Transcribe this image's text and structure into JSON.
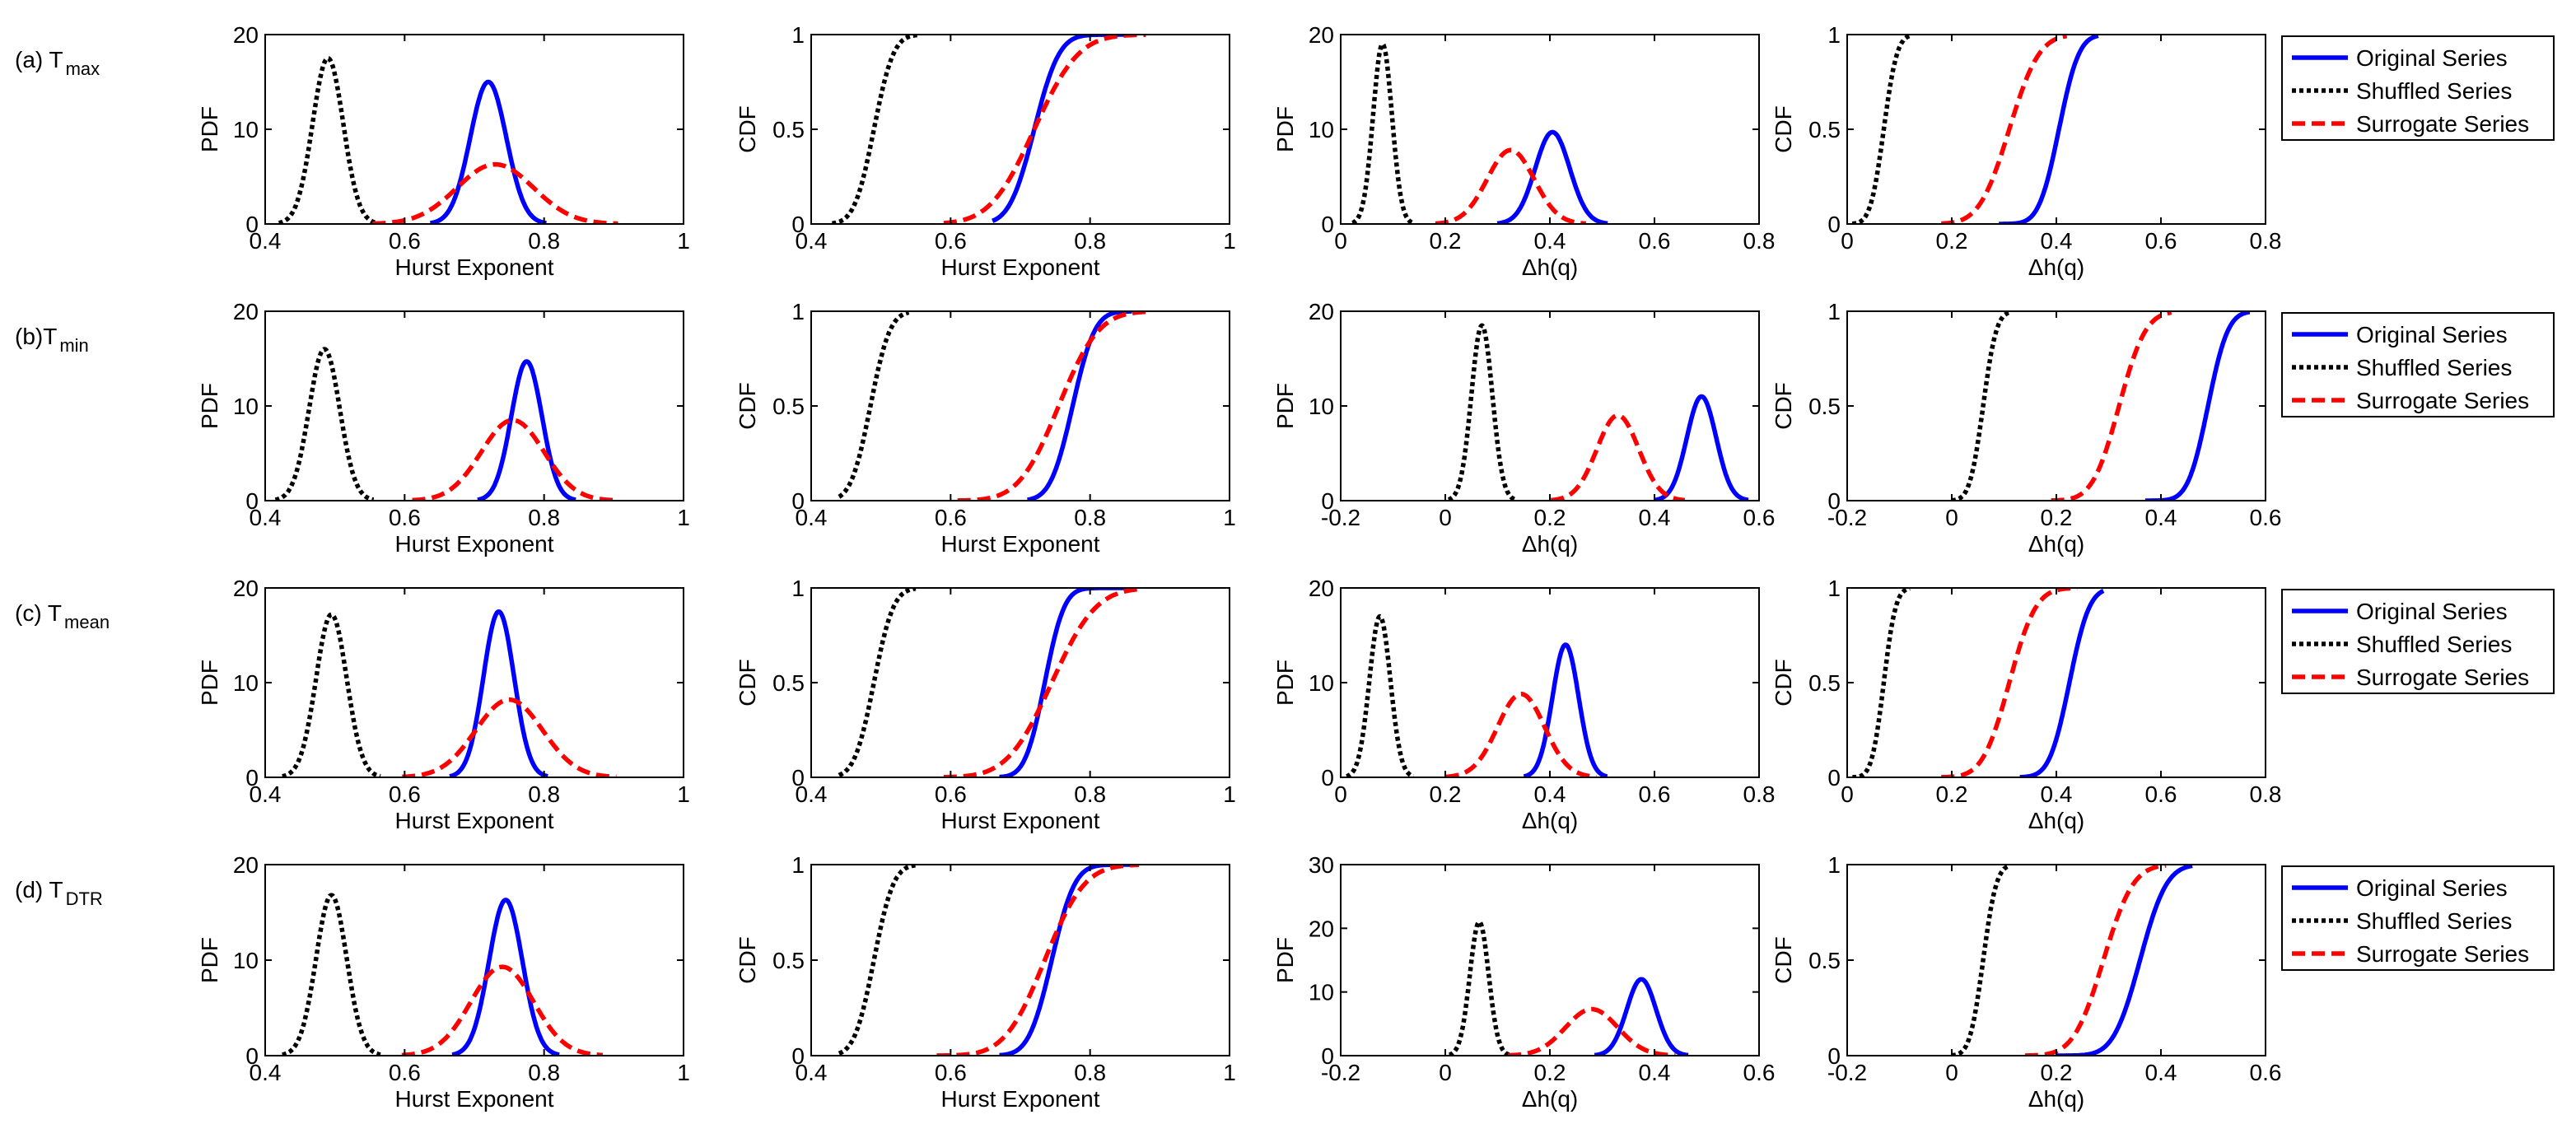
{
  "figure": {
    "row_labels": [
      {
        "main": "(a) T",
        "sub": "max"
      },
      {
        "main": "(b)T",
        "sub": "min"
      },
      {
        "main": "(c) T",
        "sub": "mean"
      },
      {
        "main": "(d) T",
        "sub": "DTR"
      }
    ],
    "legend_entries": [
      "Original Series",
      "Shuffled Series",
      "Surrogate Series"
    ],
    "colors": {
      "original": "#0000ff",
      "shuffled": "#000000",
      "surrogate": "#ff0000"
    }
  },
  "chart_data": [
    {
      "type": "line",
      "row": "(a) T max",
      "ylabel": "PDF",
      "xlabel": "Hurst Exponent",
      "xlim": [
        0.4,
        1
      ],
      "ylim": [
        0,
        20
      ],
      "xticks": [
        "0.4",
        "0.6",
        "0.8",
        "1"
      ],
      "yticks": [
        "0",
        "10",
        "20"
      ],
      "series": [
        {
          "name": "Original Series",
          "shape": "pdf",
          "mean": 0.72,
          "sd": 0.026,
          "peak": 15
        },
        {
          "name": "Shuffled Series",
          "shape": "pdf",
          "mean": 0.49,
          "sd": 0.022,
          "peak": 17.5
        },
        {
          "name": "Surrogate Series",
          "shape": "pdf",
          "mean": 0.73,
          "sd": 0.055,
          "peak": 6.3
        }
      ]
    },
    {
      "type": "line",
      "row": "(a) T max",
      "ylabel": "CDF",
      "xlabel": "Hurst Exponent",
      "xlim": [
        0.4,
        1
      ],
      "ylim": [
        0,
        1
      ],
      "xticks": [
        "0.4",
        "0.6",
        "0.8",
        "1"
      ],
      "yticks": [
        "0",
        "0.5",
        "1"
      ],
      "series": [
        {
          "name": "Original Series",
          "shape": "cdf",
          "mean": 0.72,
          "sd": 0.028,
          "from": 0.66,
          "to": 0.86
        },
        {
          "name": "Shuffled Series",
          "shape": "cdf",
          "mean": 0.49,
          "sd": 0.022,
          "from": 0.43,
          "to": 0.555
        },
        {
          "name": "Surrogate Series",
          "shape": "cdf",
          "mean": 0.72,
          "sd": 0.05,
          "from": 0.59,
          "to": 0.88
        }
      ]
    },
    {
      "type": "line",
      "row": "(a) T max",
      "ylabel": "PDF",
      "xlabel": "Δh(q)",
      "xlim": [
        0,
        0.8
      ],
      "ylim": [
        0,
        20
      ],
      "xticks": [
        "0",
        "0.2",
        "0.4",
        "0.6",
        "0.8"
      ],
      "yticks": [
        "0",
        "10",
        "20"
      ],
      "series": [
        {
          "name": "Original Series",
          "shape": "pdf",
          "mean": 0.405,
          "sd": 0.033,
          "peak": 9.7
        },
        {
          "name": "Shuffled Series",
          "shape": "pdf",
          "mean": 0.08,
          "sd": 0.018,
          "peak": 19
        },
        {
          "name": "Surrogate Series",
          "shape": "pdf",
          "mean": 0.325,
          "sd": 0.045,
          "peak": 7.8
        }
      ]
    },
    {
      "type": "line",
      "row": "(a) T max",
      "ylabel": "CDF",
      "xlabel": "Δh(q)",
      "xlim": [
        0,
        0.8
      ],
      "ylim": [
        0,
        1
      ],
      "xticks": [
        "0",
        "0.2",
        "0.4",
        "0.6",
        "0.8"
      ],
      "yticks": [
        "0",
        "0.5",
        "1"
      ],
      "legend": "right",
      "series": [
        {
          "name": "Original Series",
          "shape": "cdf",
          "mean": 0.405,
          "sd": 0.03,
          "from": 0.29,
          "to": 0.48
        },
        {
          "name": "Shuffled Series",
          "shape": "cdf",
          "mean": 0.07,
          "sd": 0.02,
          "from": 0.01,
          "to": 0.12
        },
        {
          "name": "Surrogate Series",
          "shape": "cdf",
          "mean": 0.31,
          "sd": 0.045,
          "from": 0.18,
          "to": 0.42
        }
      ]
    },
    {
      "type": "line",
      "row": "(b)T min",
      "ylabel": "PDF",
      "xlabel": "Hurst Exponent",
      "xlim": [
        0.4,
        1
      ],
      "ylim": [
        0,
        20
      ],
      "xticks": [
        "0.4",
        "0.6",
        "0.8",
        "1"
      ],
      "yticks": [
        "0",
        "10",
        "20"
      ],
      "series": [
        {
          "name": "Original Series",
          "shape": "pdf",
          "mean": 0.775,
          "sd": 0.022,
          "peak": 14.7
        },
        {
          "name": "Shuffled Series",
          "shape": "pdf",
          "mean": 0.485,
          "sd": 0.022,
          "peak": 16
        },
        {
          "name": "Surrogate Series",
          "shape": "pdf",
          "mean": 0.755,
          "sd": 0.045,
          "peak": 8.5
        }
      ]
    },
    {
      "type": "line",
      "row": "(b)T min",
      "ylabel": "CDF",
      "xlabel": "Hurst Exponent",
      "xlim": [
        0.4,
        1
      ],
      "ylim": [
        0,
        1
      ],
      "xticks": [
        "0.4",
        "0.6",
        "0.8",
        "1"
      ],
      "yticks": [
        "0",
        "0.5",
        "1"
      ],
      "series": [
        {
          "name": "Original Series",
          "shape": "cdf",
          "mean": 0.775,
          "sd": 0.025,
          "from": 0.71,
          "to": 0.86
        },
        {
          "name": "Shuffled Series",
          "shape": "cdf",
          "mean": 0.485,
          "sd": 0.022,
          "from": 0.44,
          "to": 0.54
        },
        {
          "name": "Surrogate Series",
          "shape": "cdf",
          "mean": 0.755,
          "sd": 0.045,
          "from": 0.61,
          "to": 0.88
        }
      ]
    },
    {
      "type": "line",
      "row": "(b)T min",
      "ylabel": "PDF",
      "xlabel": "Δh(q)",
      "xlim": [
        -0.2,
        0.6
      ],
      "ylim": [
        0,
        20
      ],
      "xticks": [
        "-0.2",
        "0",
        "0.2",
        "0.4",
        "0.6"
      ],
      "yticks": [
        "0",
        "10",
        "20"
      ],
      "series": [
        {
          "name": "Original Series",
          "shape": "pdf",
          "mean": 0.49,
          "sd": 0.028,
          "peak": 11
        },
        {
          "name": "Shuffled Series",
          "shape": "pdf",
          "mean": 0.07,
          "sd": 0.02,
          "peak": 18.5
        },
        {
          "name": "Surrogate Series",
          "shape": "pdf",
          "mean": 0.33,
          "sd": 0.04,
          "peak": 9
        }
      ]
    },
    {
      "type": "line",
      "row": "(b)T min",
      "ylabel": "CDF",
      "xlabel": "Δh(q)",
      "xlim": [
        -0.2,
        0.6
      ],
      "ylim": [
        0,
        1
      ],
      "xticks": [
        "-0.2",
        "0",
        "0.2",
        "0.4",
        "0.6"
      ],
      "yticks": [
        "0",
        "0.5",
        "1"
      ],
      "legend": "right",
      "series": [
        {
          "name": "Original Series",
          "shape": "cdf",
          "mean": 0.49,
          "sd": 0.03,
          "from": 0.37,
          "to": 0.57
        },
        {
          "name": "Shuffled Series",
          "shape": "cdf",
          "mean": 0.06,
          "sd": 0.02,
          "from": 0.0,
          "to": 0.11
        },
        {
          "name": "Surrogate Series",
          "shape": "cdf",
          "mean": 0.32,
          "sd": 0.04,
          "from": 0.19,
          "to": 0.42
        }
      ]
    },
    {
      "type": "line",
      "row": "(c) T mean",
      "ylabel": "PDF",
      "xlabel": "Hurst Exponent",
      "xlim": [
        0.4,
        1
      ],
      "ylim": [
        0,
        20
      ],
      "xticks": [
        "0.4",
        "0.6",
        "0.8",
        "1"
      ],
      "yticks": [
        "0",
        "10",
        "20"
      ],
      "series": [
        {
          "name": "Original Series",
          "shape": "pdf",
          "mean": 0.735,
          "sd": 0.022,
          "peak": 17.5
        },
        {
          "name": "Shuffled Series",
          "shape": "pdf",
          "mean": 0.495,
          "sd": 0.022,
          "peak": 17.2
        },
        {
          "name": "Surrogate Series",
          "shape": "pdf",
          "mean": 0.75,
          "sd": 0.048,
          "peak": 8.2
        }
      ]
    },
    {
      "type": "line",
      "row": "(c) T mean",
      "ylabel": "CDF",
      "xlabel": "Hurst Exponent",
      "xlim": [
        0.4,
        1
      ],
      "ylim": [
        0,
        1
      ],
      "xticks": [
        "0.4",
        "0.6",
        "0.8",
        "1"
      ],
      "yticks": [
        "0",
        "0.5",
        "1"
      ],
      "series": [
        {
          "name": "Original Series",
          "shape": "cdf",
          "mean": 0.735,
          "sd": 0.022,
          "from": 0.67,
          "to": 0.86
        },
        {
          "name": "Shuffled Series",
          "shape": "cdf",
          "mean": 0.49,
          "sd": 0.022,
          "from": 0.44,
          "to": 0.55
        },
        {
          "name": "Surrogate Series",
          "shape": "cdf",
          "mean": 0.745,
          "sd": 0.05,
          "from": 0.59,
          "to": 0.87
        }
      ]
    },
    {
      "type": "line",
      "row": "(c) T mean",
      "ylabel": "PDF",
      "xlabel": "Δh(q)",
      "xlim": [
        0,
        0.8
      ],
      "ylim": [
        0,
        20
      ],
      "xticks": [
        "0",
        "0.2",
        "0.4",
        "0.6",
        "0.8"
      ],
      "yticks": [
        "0",
        "10",
        "20"
      ],
      "series": [
        {
          "name": "Original Series",
          "shape": "pdf",
          "mean": 0.43,
          "sd": 0.025,
          "peak": 14
        },
        {
          "name": "Shuffled Series",
          "shape": "pdf",
          "mean": 0.075,
          "sd": 0.02,
          "peak": 17
        },
        {
          "name": "Surrogate Series",
          "shape": "pdf",
          "mean": 0.345,
          "sd": 0.045,
          "peak": 8.8
        }
      ]
    },
    {
      "type": "line",
      "row": "(c) T mean",
      "ylabel": "CDF",
      "xlabel": "Δh(q)",
      "xlim": [
        0,
        0.8
      ],
      "ylim": [
        0,
        1
      ],
      "xticks": [
        "0",
        "0.2",
        "0.4",
        "0.6",
        "0.8"
      ],
      "yticks": [
        "0",
        "0.5",
        "1"
      ],
      "legend": "right",
      "series": [
        {
          "name": "Original Series",
          "shape": "cdf",
          "mean": 0.425,
          "sd": 0.03,
          "from": 0.33,
          "to": 0.49
        },
        {
          "name": "Shuffled Series",
          "shape": "cdf",
          "mean": 0.07,
          "sd": 0.018,
          "from": 0.01,
          "to": 0.12
        },
        {
          "name": "Surrogate Series",
          "shape": "cdf",
          "mean": 0.31,
          "sd": 0.04,
          "from": 0.18,
          "to": 0.44
        }
      ]
    },
    {
      "type": "line",
      "row": "(d) T DTR",
      "ylabel": "PDF",
      "xlabel": "Hurst Exponent",
      "xlim": [
        0.4,
        1
      ],
      "ylim": [
        0,
        20
      ],
      "xticks": [
        "0.4",
        "0.6",
        "0.8",
        "1"
      ],
      "yticks": [
        "0",
        "10",
        "20"
      ],
      "series": [
        {
          "name": "Original Series",
          "shape": "pdf",
          "mean": 0.745,
          "sd": 0.024,
          "peak": 16.3
        },
        {
          "name": "Shuffled Series",
          "shape": "pdf",
          "mean": 0.495,
          "sd": 0.022,
          "peak": 16.8
        },
        {
          "name": "Surrogate Series",
          "shape": "pdf",
          "mean": 0.74,
          "sd": 0.045,
          "peak": 9.3
        }
      ]
    },
    {
      "type": "line",
      "row": "(d) T DTR",
      "ylabel": "CDF",
      "xlabel": "Hurst Exponent",
      "xlim": [
        0.4,
        1
      ],
      "ylim": [
        0,
        1
      ],
      "xticks": [
        "0.4",
        "0.6",
        "0.8",
        "1"
      ],
      "yticks": [
        "0",
        "0.5",
        "1"
      ],
      "series": [
        {
          "name": "Original Series",
          "shape": "cdf",
          "mean": 0.745,
          "sd": 0.026,
          "from": 0.67,
          "to": 0.86
        },
        {
          "name": "Shuffled Series",
          "shape": "cdf",
          "mean": 0.49,
          "sd": 0.022,
          "from": 0.44,
          "to": 0.55
        },
        {
          "name": "Surrogate Series",
          "shape": "cdf",
          "mean": 0.735,
          "sd": 0.045,
          "from": 0.58,
          "to": 0.87
        }
      ]
    },
    {
      "type": "line",
      "row": "(d) T DTR",
      "ylabel": "PDF",
      "xlabel": "Δh(q)",
      "xlim": [
        -0.2,
        0.6
      ],
      "ylim": [
        0,
        30
      ],
      "xticks": [
        "-0.2",
        "0",
        "0.2",
        "0.4",
        "0.6"
      ],
      "yticks": [
        "0",
        "10",
        "20",
        "30"
      ],
      "series": [
        {
          "name": "Original Series",
          "shape": "pdf",
          "mean": 0.375,
          "sd": 0.028,
          "peak": 12
        },
        {
          "name": "Shuffled Series",
          "shape": "pdf",
          "mean": 0.065,
          "sd": 0.018,
          "peak": 21
        },
        {
          "name": "Surrogate Series",
          "shape": "pdf",
          "mean": 0.28,
          "sd": 0.05,
          "peak": 7.3
        }
      ]
    },
    {
      "type": "line",
      "row": "(d) T DTR",
      "ylabel": "CDF",
      "xlabel": "Δh(q)",
      "xlim": [
        -0.2,
        0.6
      ],
      "ylim": [
        0,
        1
      ],
      "xticks": [
        "-0.2",
        "0",
        "0.2",
        "0.4",
        "0.6"
      ],
      "yticks": [
        "0",
        "0.5",
        "1"
      ],
      "legend": "right",
      "series": [
        {
          "name": "Original Series",
          "shape": "cdf",
          "mean": 0.36,
          "sd": 0.04,
          "from": 0.2,
          "to": 0.46
        },
        {
          "name": "Shuffled Series",
          "shape": "cdf",
          "mean": 0.06,
          "sd": 0.02,
          "from": 0.0,
          "to": 0.11
        },
        {
          "name": "Surrogate Series",
          "shape": "cdf",
          "mean": 0.29,
          "sd": 0.045,
          "from": 0.14,
          "to": 0.41
        }
      ]
    }
  ]
}
